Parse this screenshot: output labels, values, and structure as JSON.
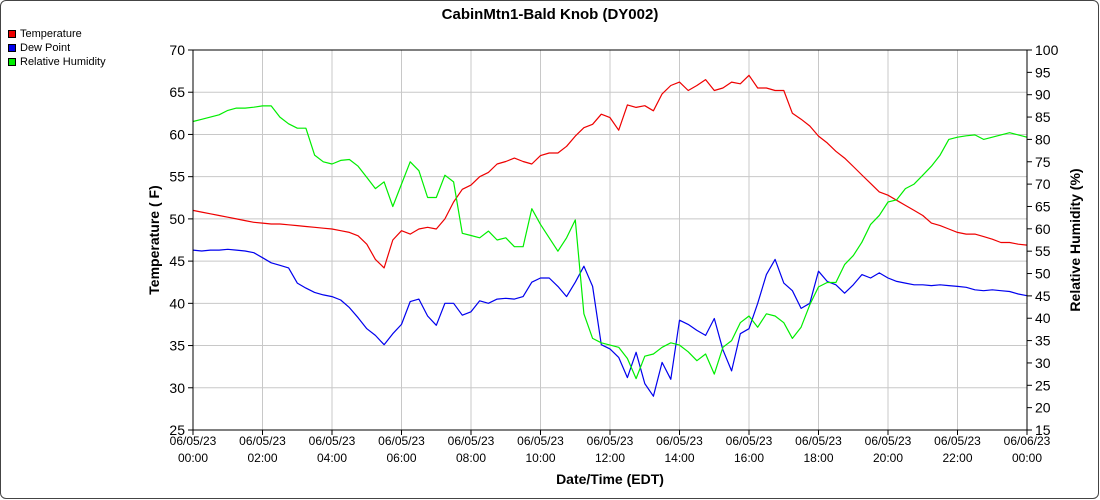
{
  "chart_data": {
    "type": "line",
    "title": "CabinMtn1-Bald Knob (DY002)",
    "xlabel": "Date/Time (EDT)",
    "ylabel_left": "Temperature ( F)",
    "ylabel_right": "Relative Humidity (%)",
    "ylim_left": [
      25,
      70
    ],
    "ylim_right": [
      15,
      100
    ],
    "yticks_left": [
      "25",
      "30",
      "35",
      "40",
      "45",
      "50",
      "55",
      "60",
      "65",
      "70"
    ],
    "yticks_right": [
      "15",
      "20",
      "25",
      "30",
      "35",
      "40",
      "45",
      "50",
      "55",
      "60",
      "65",
      "70",
      "75",
      "80",
      "85",
      "90",
      "95",
      "100"
    ],
    "xlim_hours": [
      0,
      24
    ],
    "xticks": [
      {
        "h": 0,
        "date": "06/05/23",
        "time": "00:00"
      },
      {
        "h": 2,
        "date": "06/05/23",
        "time": "02:00"
      },
      {
        "h": 4,
        "date": "06/05/23",
        "time": "04:00"
      },
      {
        "h": 6,
        "date": "06/05/23",
        "time": "06:00"
      },
      {
        "h": 8,
        "date": "06/05/23",
        "time": "08:00"
      },
      {
        "h": 10,
        "date": "06/05/23",
        "time": "10:00"
      },
      {
        "h": 12,
        "date": "06/05/23",
        "time": "12:00"
      },
      {
        "h": 14,
        "date": "06/05/23",
        "time": "14:00"
      },
      {
        "h": 16,
        "date": "06/05/23",
        "time": "16:00"
      },
      {
        "h": 18,
        "date": "06/05/23",
        "time": "18:00"
      },
      {
        "h": 20,
        "date": "06/05/23",
        "time": "20:00"
      },
      {
        "h": 22,
        "date": "06/05/23",
        "time": "22:00"
      },
      {
        "h": 24,
        "date": "06/06/23",
        "time": "00:00"
      }
    ],
    "grid": true,
    "legend_position": "top-left outside",
    "series": [
      {
        "name": "Temperature",
        "color": "#ee0000",
        "axis": "left",
        "x": [
          0,
          0.25,
          0.5,
          0.75,
          1,
          1.25,
          1.5,
          1.75,
          2,
          2.25,
          2.5,
          2.75,
          3,
          3.25,
          3.5,
          3.75,
          4,
          4.25,
          4.5,
          4.75,
          5,
          5.25,
          5.5,
          5.75,
          6,
          6.25,
          6.5,
          6.75,
          7,
          7.25,
          7.5,
          7.75,
          8,
          8.25,
          8.5,
          8.75,
          9,
          9.25,
          9.5,
          9.75,
          10,
          10.25,
          10.5,
          10.75,
          11,
          11.25,
          11.5,
          11.75,
          12,
          12.25,
          12.5,
          12.75,
          13,
          13.25,
          13.5,
          13.75,
          14,
          14.25,
          14.5,
          14.75,
          15,
          15.25,
          15.5,
          15.75,
          16,
          16.25,
          16.5,
          16.75,
          17,
          17.25,
          17.5,
          17.75,
          18,
          18.25,
          18.5,
          18.75,
          19,
          19.25,
          19.5,
          19.75,
          20,
          20.25,
          20.5,
          20.75,
          21,
          21.25,
          21.5,
          21.75,
          22,
          22.25,
          22.5,
          22.75,
          23,
          23.25,
          23.5,
          23.75,
          24
        ],
        "y": [
          51,
          50.8,
          50.6,
          50.4,
          50.2,
          50,
          49.8,
          49.6,
          49.5,
          49.4,
          49.4,
          49.3,
          49.2,
          49.1,
          49,
          48.9,
          48.8,
          48.6,
          48.4,
          48,
          47,
          45.2,
          44.2,
          47.5,
          48.6,
          48.2,
          48.8,
          49,
          48.8,
          50,
          52,
          53.5,
          54,
          55,
          55.5,
          56.5,
          56.8,
          57.2,
          56.8,
          56.5,
          57.5,
          57.8,
          57.8,
          58.6,
          59.8,
          60.8,
          61.2,
          62.4,
          62,
          60.5,
          63.5,
          63.2,
          63.4,
          62.8,
          64.8,
          65.8,
          66.2,
          65.2,
          65.8,
          66.5,
          65.2,
          65.5,
          66.2,
          66,
          67,
          65.5,
          65.5,
          65.2,
          65.2,
          62.5,
          61.8,
          61,
          59.8,
          59,
          58,
          57.2,
          56.2,
          55.2,
          54.2,
          53.2,
          52.8,
          52.2,
          51.6,
          51,
          50.4,
          49.5,
          49.2,
          48.8,
          48.4,
          48.2,
          48.2,
          47.9,
          47.6,
          47.2,
          47.2,
          47,
          46.9
        ]
      },
      {
        "name": "Dew Point",
        "color": "#0000ee",
        "axis": "left",
        "x": [
          0,
          0.25,
          0.5,
          0.75,
          1,
          1.25,
          1.5,
          1.75,
          2,
          2.25,
          2.5,
          2.75,
          3,
          3.25,
          3.5,
          3.75,
          4,
          4.25,
          4.5,
          4.75,
          5,
          5.25,
          5.5,
          5.75,
          6,
          6.25,
          6.5,
          6.75,
          7,
          7.25,
          7.5,
          7.75,
          8,
          8.25,
          8.5,
          8.75,
          9,
          9.25,
          9.5,
          9.75,
          10,
          10.25,
          10.5,
          10.75,
          11,
          11.25,
          11.5,
          11.75,
          12,
          12.25,
          12.5,
          12.75,
          13,
          13.25,
          13.5,
          13.75,
          14,
          14.25,
          14.5,
          14.75,
          15,
          15.25,
          15.5,
          15.75,
          16,
          16.25,
          16.5,
          16.75,
          17,
          17.25,
          17.5,
          17.75,
          18,
          18.25,
          18.5,
          18.75,
          19,
          19.25,
          19.5,
          19.75,
          20,
          20.25,
          20.5,
          20.75,
          21,
          21.25,
          21.5,
          21.75,
          22,
          22.25,
          22.5,
          22.75,
          23,
          23.25,
          23.5,
          23.75,
          24
        ],
        "y": [
          46.3,
          46.2,
          46.3,
          46.3,
          46.4,
          46.3,
          46.2,
          46,
          45.4,
          44.8,
          44.5,
          44.2,
          42.4,
          41.8,
          41.3,
          41,
          40.8,
          40.4,
          39.5,
          38.3,
          37,
          36.2,
          35.1,
          36.4,
          37.5,
          40.2,
          40.5,
          38.5,
          37.4,
          40,
          40,
          38.6,
          39,
          40.3,
          40,
          40.5,
          40.6,
          40.5,
          40.8,
          42.5,
          43,
          43,
          42,
          40.8,
          42.5,
          44.4,
          42,
          35.1,
          34.6,
          33.6,
          31.2,
          34.2,
          30.5,
          29,
          33,
          31,
          38,
          37.5,
          36.8,
          36.2,
          38.2,
          34.5,
          32,
          36.4,
          37,
          40,
          43.4,
          45.2,
          42.4,
          41.5,
          39.4,
          40,
          43.8,
          42.6,
          42.2,
          41.2,
          42.2,
          43.4,
          43,
          43.6,
          43,
          42.6,
          42.4,
          42.2,
          42.2,
          42.1,
          42.2,
          42.1,
          42,
          41.9,
          41.6,
          41.5,
          41.6,
          41.5,
          41.4,
          41.1,
          40.9
        ]
      },
      {
        "name": "Relative Humidity",
        "color": "#00ee00",
        "axis": "right",
        "x": [
          0,
          0.25,
          0.5,
          0.75,
          1,
          1.25,
          1.5,
          1.75,
          2,
          2.25,
          2.5,
          2.75,
          3,
          3.25,
          3.5,
          3.75,
          4,
          4.25,
          4.5,
          4.75,
          5,
          5.25,
          5.5,
          5.75,
          6,
          6.25,
          6.5,
          6.75,
          7,
          7.25,
          7.5,
          7.75,
          8,
          8.25,
          8.5,
          8.75,
          9,
          9.25,
          9.5,
          9.75,
          10,
          10.25,
          10.5,
          10.75,
          11,
          11.25,
          11.5,
          11.75,
          12,
          12.25,
          12.5,
          12.75,
          13,
          13.25,
          13.5,
          13.75,
          14,
          14.25,
          14.5,
          14.75,
          15,
          15.25,
          15.5,
          15.75,
          16,
          16.25,
          16.5,
          16.75,
          17,
          17.25,
          17.5,
          17.75,
          18,
          18.25,
          18.5,
          18.75,
          19,
          19.25,
          19.5,
          19.75,
          20,
          20.25,
          20.5,
          20.75,
          21,
          21.25,
          21.5,
          21.75,
          22,
          22.25,
          22.5,
          22.75,
          23,
          23.25,
          23.5,
          23.75,
          24
        ],
        "y": [
          84,
          84.5,
          85,
          85.5,
          86.5,
          87,
          87,
          87.2,
          87.5,
          87.5,
          85,
          83.5,
          82.5,
          82.5,
          76.5,
          75,
          74.5,
          75.3,
          75.5,
          74,
          71.5,
          69,
          70.5,
          65,
          70,
          75,
          73,
          67,
          67,
          72,
          70.5,
          59,
          58.5,
          58,
          59.5,
          57.5,
          58,
          56,
          56,
          64.5,
          61,
          58,
          55,
          58,
          62,
          41,
          35.5,
          34.5,
          34,
          33.5,
          31,
          26.5,
          31.5,
          32,
          33.5,
          34.5,
          34,
          32.5,
          30.5,
          32,
          27.5,
          33.5,
          35,
          39,
          40.5,
          38,
          41,
          40.5,
          39,
          35.5,
          38,
          43,
          47,
          48,
          48,
          52,
          54,
          57,
          61,
          63,
          66,
          66.5,
          69,
          70,
          72,
          74,
          76.5,
          80,
          80.5,
          80.8,
          81,
          80,
          80.5,
          81,
          81.5,
          81,
          80.5
        ]
      }
    ]
  }
}
